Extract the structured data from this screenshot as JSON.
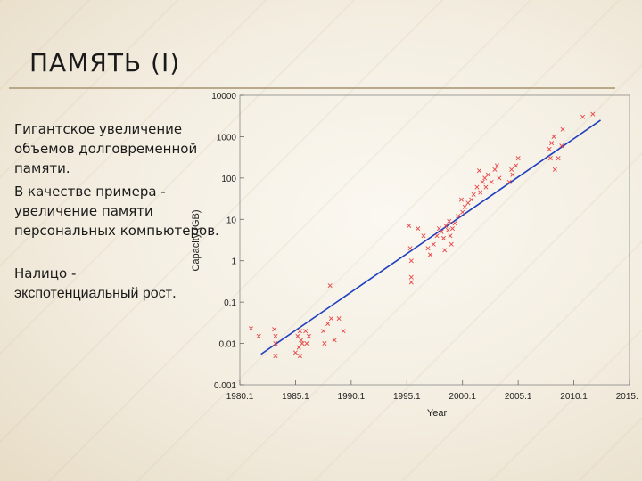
{
  "slide": {
    "title": "ПАМЯТЬ  (I)",
    "para1": "Гигантское увеличение объемов долговременной памяти.",
    "para2": "В качестве примера - увеличение памяти персональных компьютеров.",
    "para3_lead": "Налицо -",
    "para3_bold": "экспотенциальный рост",
    "para3_end": ".",
    "accent_line_color": "#b9a98a"
  },
  "chart_data": {
    "type": "scatter",
    "title": "",
    "xlabel": "Year",
    "ylabel": "Capacity (GB)",
    "log_y": true,
    "xlim": [
      1980.1,
      2015.1
    ],
    "ylim": [
      0.001,
      10000
    ],
    "x_tick_labels": [
      "1980.1",
      "1985.1",
      "1990.1",
      "1995.1",
      "2000.1",
      "2005.1",
      "2010.1",
      "2015.1"
    ],
    "y_tick_labels": [
      "0.001",
      "0.01",
      "0.1",
      "1",
      "10",
      "100",
      "1000",
      "10000"
    ],
    "grid": false,
    "marker": "x",
    "point_color": "#e64545",
    "trend_color": "#1f3fbf",
    "trendline": {
      "x": [
        1982.0,
        2012.5
      ],
      "y": [
        0.0055,
        2500
      ]
    },
    "points": [
      {
        "x": 1981.1,
        "y": 0.023
      },
      {
        "x": 1981.8,
        "y": 0.015
      },
      {
        "x": 1983.2,
        "y": 0.022
      },
      {
        "x": 1983.3,
        "y": 0.015
      },
      {
        "x": 1983.3,
        "y": 0.01
      },
      {
        "x": 1983.3,
        "y": 0.005
      },
      {
        "x": 1985.5,
        "y": 0.02
      },
      {
        "x": 1985.3,
        "y": 0.015
      },
      {
        "x": 1985.6,
        "y": 0.012
      },
      {
        "x": 1985.7,
        "y": 0.01
      },
      {
        "x": 1985.4,
        "y": 0.008
      },
      {
        "x": 1985.1,
        "y": 0.006
      },
      {
        "x": 1985.5,
        "y": 0.005
      },
      {
        "x": 1986.0,
        "y": 0.02
      },
      {
        "x": 1986.3,
        "y": 0.015
      },
      {
        "x": 1986.1,
        "y": 0.01
      },
      {
        "x": 1987.6,
        "y": 0.02
      },
      {
        "x": 1987.7,
        "y": 0.01
      },
      {
        "x": 1988.2,
        "y": 0.25
      },
      {
        "x": 1988.0,
        "y": 0.03
      },
      {
        "x": 1988.3,
        "y": 0.04
      },
      {
        "x": 1989.0,
        "y": 0.04
      },
      {
        "x": 1989.4,
        "y": 0.02
      },
      {
        "x": 1988.6,
        "y": 0.012
      },
      {
        "x": 1995.3,
        "y": 7.0
      },
      {
        "x": 1995.4,
        "y": 2.0
      },
      {
        "x": 1995.5,
        "y": 1.0
      },
      {
        "x": 1995.5,
        "y": 0.4
      },
      {
        "x": 1995.5,
        "y": 0.3
      },
      {
        "x": 1996.1,
        "y": 6.0
      },
      {
        "x": 1996.6,
        "y": 4.0
      },
      {
        "x": 1997.0,
        "y": 2.0
      },
      {
        "x": 1997.2,
        "y": 1.4
      },
      {
        "x": 1997.5,
        "y": 2.5
      },
      {
        "x": 1997.8,
        "y": 4.0
      },
      {
        "x": 1998.0,
        "y": 6.0
      },
      {
        "x": 1998.2,
        "y": 5.0
      },
      {
        "x": 1998.4,
        "y": 3.5
      },
      {
        "x": 1998.6,
        "y": 7.0
      },
      {
        "x": 1998.8,
        "y": 5.5
      },
      {
        "x": 1999.0,
        "y": 4.0
      },
      {
        "x": 1999.2,
        "y": 6.0
      },
      {
        "x": 1999.4,
        "y": 8.0
      },
      {
        "x": 1999.1,
        "y": 2.5
      },
      {
        "x": 1998.9,
        "y": 9.0
      },
      {
        "x": 1998.5,
        "y": 1.8
      },
      {
        "x": 1999.7,
        "y": 12.0
      },
      {
        "x": 2000.1,
        "y": 15.0
      },
      {
        "x": 2000.3,
        "y": 20.0
      },
      {
        "x": 2000.0,
        "y": 30.0
      },
      {
        "x": 2000.6,
        "y": 25.0
      },
      {
        "x": 2000.9,
        "y": 30.0
      },
      {
        "x": 2001.1,
        "y": 40.0
      },
      {
        "x": 2001.4,
        "y": 60.0
      },
      {
        "x": 2001.7,
        "y": 45.0
      },
      {
        "x": 2001.9,
        "y": 80.0
      },
      {
        "x": 2002.1,
        "y": 100.0
      },
      {
        "x": 2002.4,
        "y": 120.0
      },
      {
        "x": 2002.7,
        "y": 80.0
      },
      {
        "x": 2003.0,
        "y": 160.0
      },
      {
        "x": 2003.2,
        "y": 200.0
      },
      {
        "x": 2003.4,
        "y": 100.0
      },
      {
        "x": 2001.6,
        "y": 150.0
      },
      {
        "x": 2002.2,
        "y": 60.0
      },
      {
        "x": 2004.3,
        "y": 80.0
      },
      {
        "x": 2004.6,
        "y": 120.0
      },
      {
        "x": 2004.9,
        "y": 200.0
      },
      {
        "x": 2005.1,
        "y": 300.0
      },
      {
        "x": 2004.5,
        "y": 160.0
      },
      {
        "x": 2007.9,
        "y": 500.0
      },
      {
        "x": 2008.1,
        "y": 700.0
      },
      {
        "x": 2008.3,
        "y": 1000.0
      },
      {
        "x": 2008.0,
        "y": 300.0
      },
      {
        "x": 2008.4,
        "y": 160.0
      },
      {
        "x": 2008.7,
        "y": 300.0
      },
      {
        "x": 2009.0,
        "y": 600.0
      },
      {
        "x": 2009.1,
        "y": 1500.0
      },
      {
        "x": 2010.9,
        "y": 3000.0
      },
      {
        "x": 2011.8,
        "y": 3500.0
      }
    ]
  }
}
